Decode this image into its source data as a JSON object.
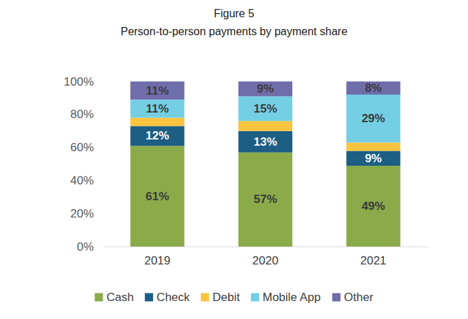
{
  "chart_data": {
    "type": "bar",
    "title": "Figure 5",
    "subtitle": "Person-to-person payments by payment share",
    "categories": [
      "2019",
      "2020",
      "2021"
    ],
    "stacked": true,
    "data_labels": true,
    "grid": false,
    "legend": "bottom",
    "ylim": [
      0,
      100
    ],
    "yticks": [
      {
        "value": 0,
        "label": "0%"
      },
      {
        "value": 20,
        "label": "20%"
      },
      {
        "value": 40,
        "label": "40%"
      },
      {
        "value": 60,
        "label": "60%"
      },
      {
        "value": 80,
        "label": "80%"
      },
      {
        "value": 100,
        "label": "100%"
      }
    ],
    "series": [
      {
        "name": "Cash",
        "color": "#8bab4b",
        "values": [
          61,
          57,
          49
        ],
        "value_labels": [
          "61%",
          "57%",
          "49%"
        ]
      },
      {
        "name": "Check",
        "color": "#1c5e84",
        "values": [
          12,
          13,
          9
        ],
        "value_labels": [
          "12%",
          "13%",
          "9%"
        ]
      },
      {
        "name": "Debit",
        "color": "#fbc43f",
        "values": [
          5,
          6,
          5
        ],
        "value_labels": [
          null,
          null,
          null
        ]
      },
      {
        "name": "Mobile App",
        "color": "#74cfe4",
        "values": [
          11,
          15,
          29
        ],
        "value_labels": [
          "11%",
          "15%",
          "29%"
        ]
      },
      {
        "name": "Other",
        "color": "#6f6daa",
        "values": [
          11,
          9,
          8
        ],
        "value_labels": [
          "11%",
          "9%",
          "8%"
        ]
      }
    ]
  }
}
